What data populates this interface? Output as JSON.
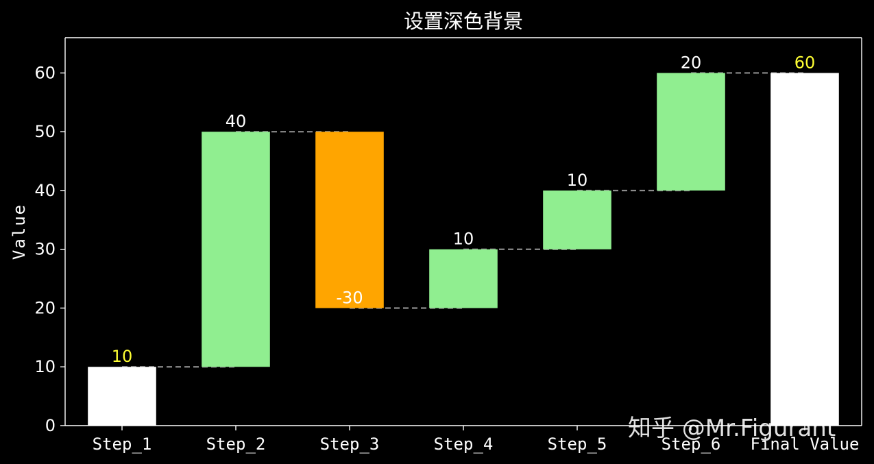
{
  "chart_data": {
    "type": "bar",
    "subtype": "waterfall",
    "title": "设置深色背景",
    "xlabel": "",
    "ylabel": "Value",
    "ylim": [
      0,
      66
    ],
    "yticks": [
      0,
      10,
      20,
      30,
      40,
      50,
      60
    ],
    "grid": false,
    "background": "#000000",
    "categories": [
      "Step_1",
      "Step_2",
      "Step_3",
      "Step_4",
      "Step_5",
      "Step_6",
      "Final Value"
    ],
    "values": [
      10,
      40,
      -30,
      10,
      10,
      20,
      60
    ],
    "bar_bottoms": [
      0,
      10,
      20,
      20,
      30,
      40,
      0
    ],
    "bar_tops": [
      10,
      50,
      50,
      30,
      40,
      60,
      60
    ],
    "data_labels": [
      "10",
      "40",
      "-30",
      "10",
      "10",
      "20",
      "60"
    ],
    "bar_colors": [
      "#ffffff",
      "#90ee90",
      "#ffa500",
      "#90ee90",
      "#90ee90",
      "#90ee90",
      "#ffffff"
    ],
    "label_colors": [
      "#ffff33",
      "#ffffff",
      "#ffffff",
      "#ffffff",
      "#ffffff",
      "#ffffff",
      "#ffff33"
    ],
    "connector_color": "#8c8c8c"
  },
  "watermark": "知乎 @Mr.Figurant"
}
